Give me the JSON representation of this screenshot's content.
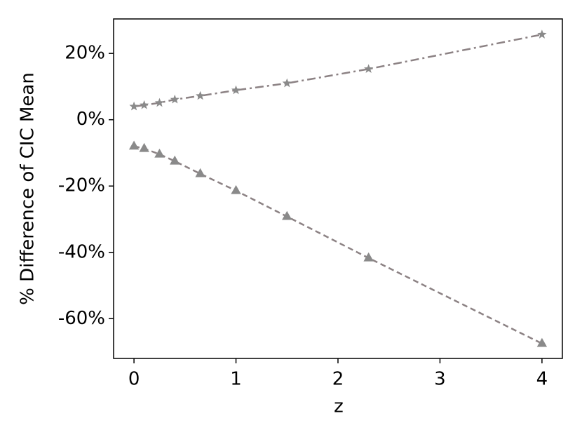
{
  "chart_data": {
    "type": "line",
    "xlabel": "z",
    "ylabel": "% Difference of CIC Mean",
    "x": [
      0,
      0.1,
      0.25,
      0.4,
      0.65,
      1.0,
      1.5,
      2.3,
      4.0
    ],
    "series": [
      {
        "color": "#8c8284",
        "marker_color": "#8a8a8a",
        "marker": "star",
        "dash": "dashdot",
        "values": [
          4.0,
          4.4,
          5.1,
          6.1,
          7.2,
          8.9,
          11.0,
          15.3,
          25.7
        ]
      },
      {
        "color": "#8c8284",
        "marker_color": "#8a8a8a",
        "marker": "triangle",
        "dash": "dashed",
        "values": [
          -8.0,
          -8.7,
          -10.4,
          -12.5,
          -16.3,
          -21.4,
          -29.2,
          -41.7,
          -67.5
        ]
      }
    ],
    "xlim": [
      -0.2,
      4.2
    ],
    "ylim": [
      -72,
      30.4
    ],
    "xticks": [
      0,
      1,
      2,
      3,
      4
    ],
    "yticks": [
      {
        "value": -60,
        "label": "-60%"
      },
      {
        "value": -40,
        "label": "-40%"
      },
      {
        "value": -20,
        "label": "-20%"
      },
      {
        "value": 0,
        "label": "0%"
      },
      {
        "value": 20,
        "label": "20%"
      }
    ]
  }
}
